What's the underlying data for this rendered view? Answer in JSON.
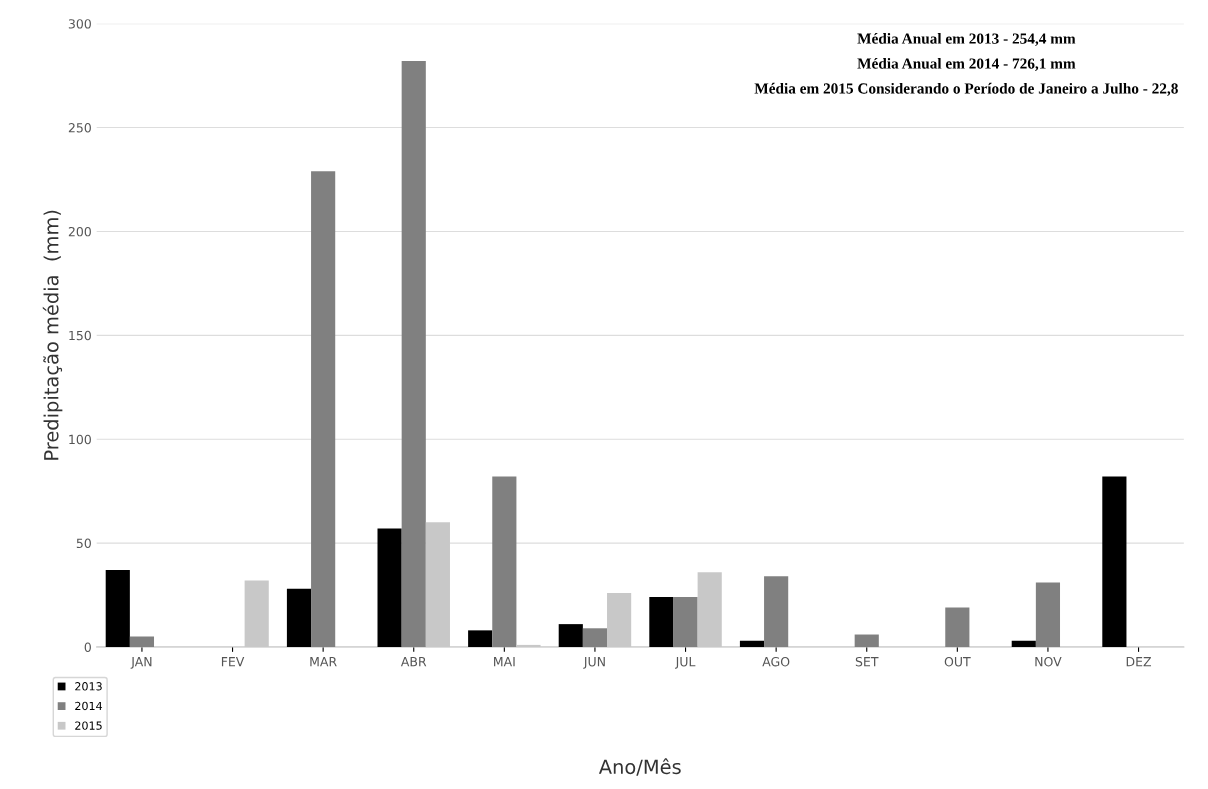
{
  "chart_data": {
    "type": "bar",
    "xlabel": "Ano/Mês",
    "ylabel": "Predipitação média  (mm)",
    "categories": [
      "JAN",
      "FEV",
      "MAR",
      "ABR",
      "MAI",
      "JUN",
      "JUL",
      "AGO",
      "SET",
      "OUT",
      "NOV",
      "DEZ"
    ],
    "series": [
      {
        "name": "2013",
        "color": "#000000",
        "values": [
          37,
          0,
          28,
          57,
          8,
          11,
          24,
          3,
          0,
          0,
          3,
          82
        ]
      },
      {
        "name": "2014",
        "color": "#808080",
        "values": [
          5,
          0,
          229,
          282,
          82,
          9,
          24,
          34,
          6,
          19,
          31,
          0
        ]
      },
      {
        "name": "2015",
        "color": "#c8c8c8",
        "values": [
          0,
          32,
          0,
          60,
          1,
          26,
          36,
          null,
          null,
          null,
          null,
          null
        ]
      }
    ],
    "ylim": [
      0,
      300
    ],
    "yticks": [
      0,
      50,
      100,
      150,
      200,
      250,
      300
    ],
    "grid": "y",
    "legend": "bottom left",
    "annotations": [
      "Média Anual em 2013 - 254,4 mm",
      "Média Anual em 2014 - 726,1 mm",
      "Média em 2015 Considerando o Período de Janeiro a Julho - 22,8"
    ]
  }
}
